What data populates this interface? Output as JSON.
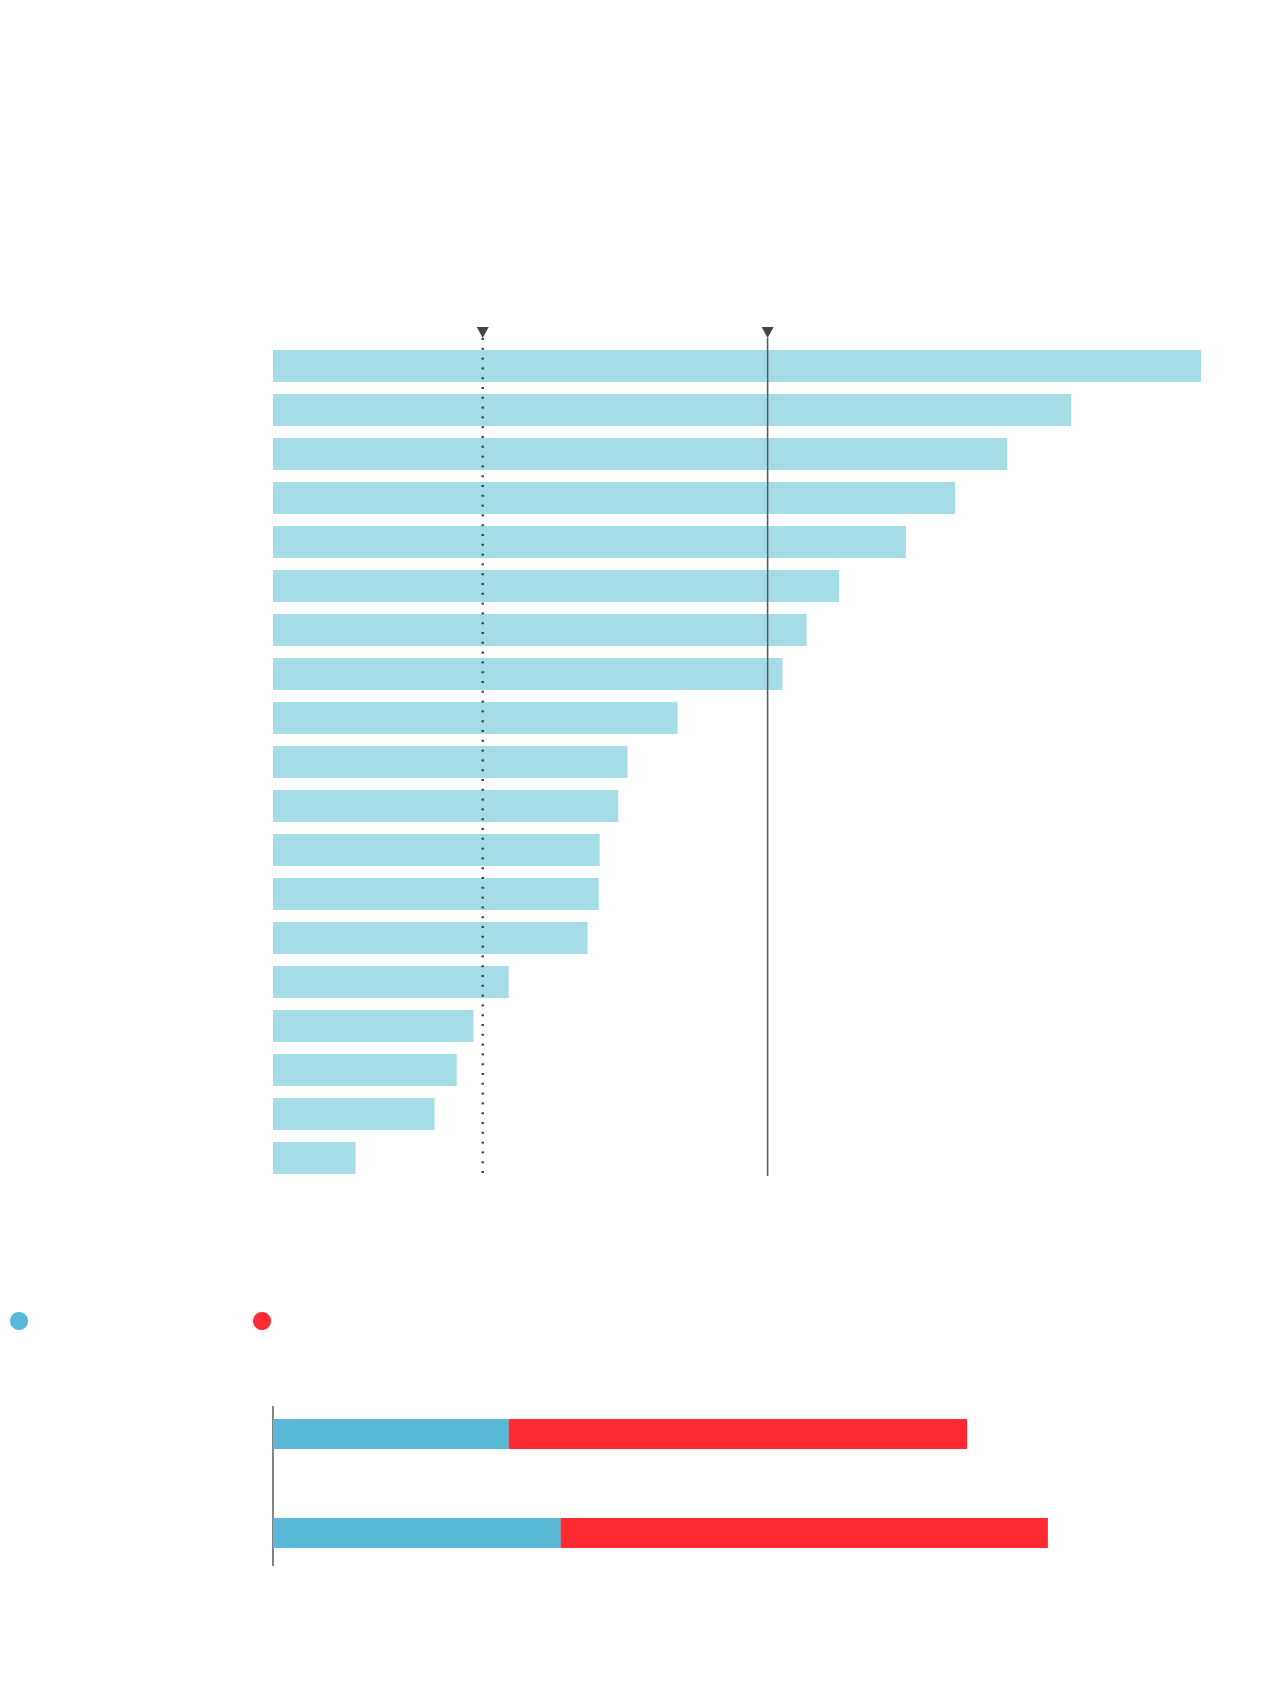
{
  "chart_data": [
    {
      "type": "bar",
      "orientation": "horizontal",
      "color": "#a5dde6",
      "values": [
        100,
        86.0,
        79.1,
        73.5,
        68.2,
        61.0,
        57.5,
        54.9,
        43.6,
        38.2,
        37.2,
        35.2,
        35.1,
        33.9,
        25.4,
        21.6,
        19.8,
        17.4,
        8.9
      ],
      "xlim": [
        0,
        100
      ],
      "reference_lines": [
        {
          "value": 22.6,
          "style": "dotted",
          "color": "#444444"
        },
        {
          "value": 53.3,
          "style": "solid",
          "color": "#555555"
        }
      ]
    },
    {
      "type": "stacked_bar",
      "orientation": "horizontal",
      "xlim": [
        0,
        100
      ],
      "legend": true,
      "series": [
        {
          "color": "#58b8d6",
          "values": [
            25.4,
            31.0
          ]
        },
        {
          "color": "#fd2a32",
          "values": [
            49.4,
            52.5
          ]
        }
      ]
    }
  ]
}
